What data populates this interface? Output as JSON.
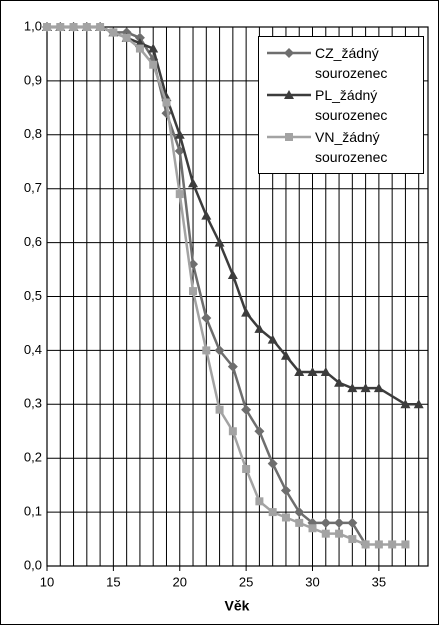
{
  "chart_data": {
    "type": "line",
    "xlabel": "Věk",
    "xlim": [
      10,
      38.7
    ],
    "xticks": [
      10,
      15,
      20,
      25,
      30,
      35
    ],
    "xgrid": [
      10,
      11,
      12,
      13,
      14,
      15,
      16,
      17,
      18,
      19,
      20,
      21,
      22,
      23,
      24,
      25,
      26,
      27,
      28,
      29,
      30,
      31,
      32,
      33,
      34,
      35,
      36,
      37,
      38
    ],
    "ylim": [
      0,
      1
    ],
    "yticks": [
      {
        "value": 0,
        "label": "0,0"
      },
      {
        "value": 0.1,
        "label": "0,1"
      },
      {
        "value": 0.2,
        "label": "0,2"
      },
      {
        "value": 0.3,
        "label": "0,3"
      },
      {
        "value": 0.4,
        "label": "0,4"
      },
      {
        "value": 0.5,
        "label": "0,5"
      },
      {
        "value": 0.6,
        "label": "0,6"
      },
      {
        "value": 0.7,
        "label": "0,7"
      },
      {
        "value": 0.8,
        "label": "0,8"
      },
      {
        "value": 0.9,
        "label": "0,9"
      },
      {
        "value": 1,
        "label": "1,0"
      }
    ],
    "grid": true,
    "legend": "upper right",
    "series": [
      {
        "name": "CZ_žádný sourozenec",
        "color": "#6e6e6e",
        "marker": "diamond",
        "x": [
          10,
          11,
          12,
          13,
          14,
          15,
          16,
          17,
          18,
          19,
          20,
          21,
          22,
          23,
          24,
          25,
          26,
          27,
          28,
          29,
          30,
          31,
          32,
          33,
          34
        ],
        "values": [
          1,
          1,
          1,
          1,
          1,
          0.99,
          0.99,
          0.98,
          0.94,
          0.84,
          0.77,
          0.56,
          0.46,
          0.4,
          0.37,
          0.29,
          0.25,
          0.19,
          0.14,
          0.1,
          0.08,
          0.08,
          0.08,
          0.08,
          0.04
        ]
      },
      {
        "name": "PL_žádný sourozenec",
        "color": "#3c3c3c",
        "marker": "triangle",
        "x": [
          10,
          11,
          12,
          13,
          14,
          15,
          16,
          17,
          18,
          19,
          20,
          21,
          22,
          23,
          24,
          25,
          26,
          27,
          28,
          29,
          30,
          31,
          32,
          33,
          34,
          35,
          37,
          38
        ],
        "values": [
          1,
          1,
          1,
          1,
          1,
          0.99,
          0.98,
          0.97,
          0.96,
          0.87,
          0.8,
          0.71,
          0.65,
          0.6,
          0.54,
          0.47,
          0.44,
          0.42,
          0.39,
          0.36,
          0.36,
          0.36,
          0.34,
          0.33,
          0.33,
          0.33,
          0.3,
          0.3
        ]
      },
      {
        "name": "VN_žádný sourozenec",
        "color": "#a3a3a3",
        "marker": "square",
        "x": [
          10,
          11,
          12,
          13,
          14,
          15,
          16,
          17,
          18,
          19,
          20,
          21,
          22,
          23,
          24,
          25,
          26,
          27,
          28,
          29,
          30,
          31,
          32,
          33,
          34,
          35,
          36,
          37
        ],
        "values": [
          1,
          1,
          1,
          1,
          1,
          0.99,
          0.98,
          0.96,
          0.93,
          0.86,
          0.69,
          0.51,
          0.4,
          0.29,
          0.25,
          0.18,
          0.12,
          0.1,
          0.09,
          0.08,
          0.07,
          0.06,
          0.06,
          0.05,
          0.04,
          0.04,
          0.04,
          0.04
        ]
      }
    ]
  }
}
